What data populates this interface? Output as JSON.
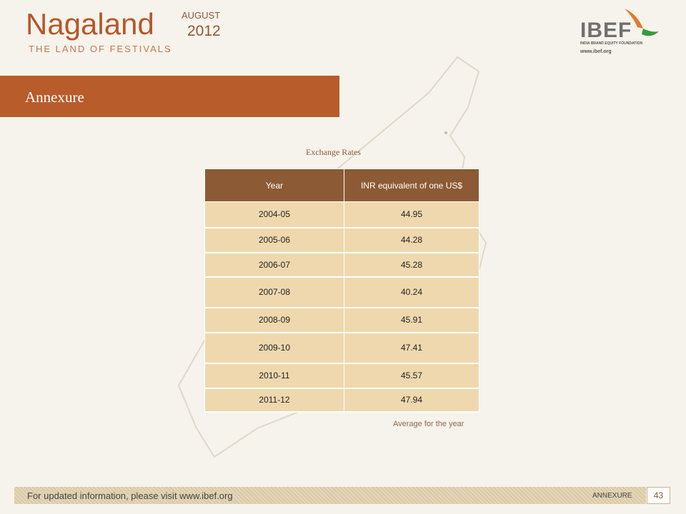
{
  "header": {
    "title": "Nagaland",
    "month": "AUGUST",
    "year": "2012",
    "tagline": "THE LAND OF FESTIVALS",
    "logo": {
      "name": "IBEF",
      "subtitle": "INDIA BRAND EQUITY FOUNDATION",
      "url": "www.ibef.org"
    }
  },
  "banner": "Annexure",
  "table": {
    "caption": "Exchange Rates",
    "columns": [
      "Year",
      "INR equivalent of one US$"
    ],
    "rows": [
      [
        "2004-05",
        "44.95"
      ],
      [
        "2005-06",
        "44.28"
      ],
      [
        "2006-07",
        "45.28"
      ],
      [
        "2007-08",
        "40.24"
      ],
      [
        "2008-09",
        "45.91"
      ],
      [
        "2009-10",
        "47.41"
      ],
      [
        "2010-11",
        "45.57"
      ],
      [
        "2011-12",
        "47.94"
      ]
    ],
    "note": "Average for the year"
  },
  "footer": {
    "text": "For updated information, please visit www.ibef.org",
    "section": "ANNEXURE",
    "page": "43"
  }
}
